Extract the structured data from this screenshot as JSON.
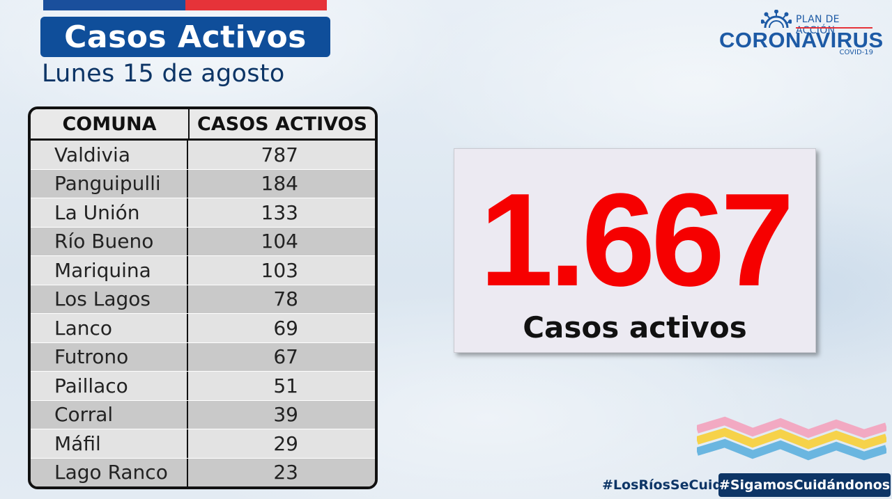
{
  "header": {
    "title": "Casos Activos",
    "date": "Lunes 15 de agosto"
  },
  "logo": {
    "plan": "PLAN DE ACCIÓN",
    "brand": "CORONAVIRUS",
    "sub": "COVID-19"
  },
  "table": {
    "headers": [
      "COMUNA",
      "CASOS ACTIVOS"
    ],
    "rows": [
      {
        "comuna": "Valdivia",
        "casos": "787"
      },
      {
        "comuna": "Panguipulli",
        "casos": "184"
      },
      {
        "comuna": "La Unión",
        "casos": "133"
      },
      {
        "comuna": "Río Bueno",
        "casos": "104"
      },
      {
        "comuna": "Mariquina",
        "casos": "103"
      },
      {
        "comuna": "Los Lagos",
        "casos": "78"
      },
      {
        "comuna": "Lanco",
        "casos": "69"
      },
      {
        "comuna": "Futrono",
        "casos": "67"
      },
      {
        "comuna": "Paillaco",
        "casos": "51"
      },
      {
        "comuna": "Corral",
        "casos": "39"
      },
      {
        "comuna": "Máfil",
        "casos": "29"
      },
      {
        "comuna": "Lago Ranco",
        "casos": "23"
      }
    ]
  },
  "total": {
    "value": "1.667",
    "label": "Casos activos"
  },
  "footer": {
    "hashtag_1": "#LosRíosSeCuida",
    "hashtag_2": "#SigamosCuidándonos"
  },
  "colors": {
    "brand_blue": "#0f4e9a",
    "brand_red": "#e63339",
    "total_red": "#f60000",
    "dark_navy": "#0d3566"
  }
}
